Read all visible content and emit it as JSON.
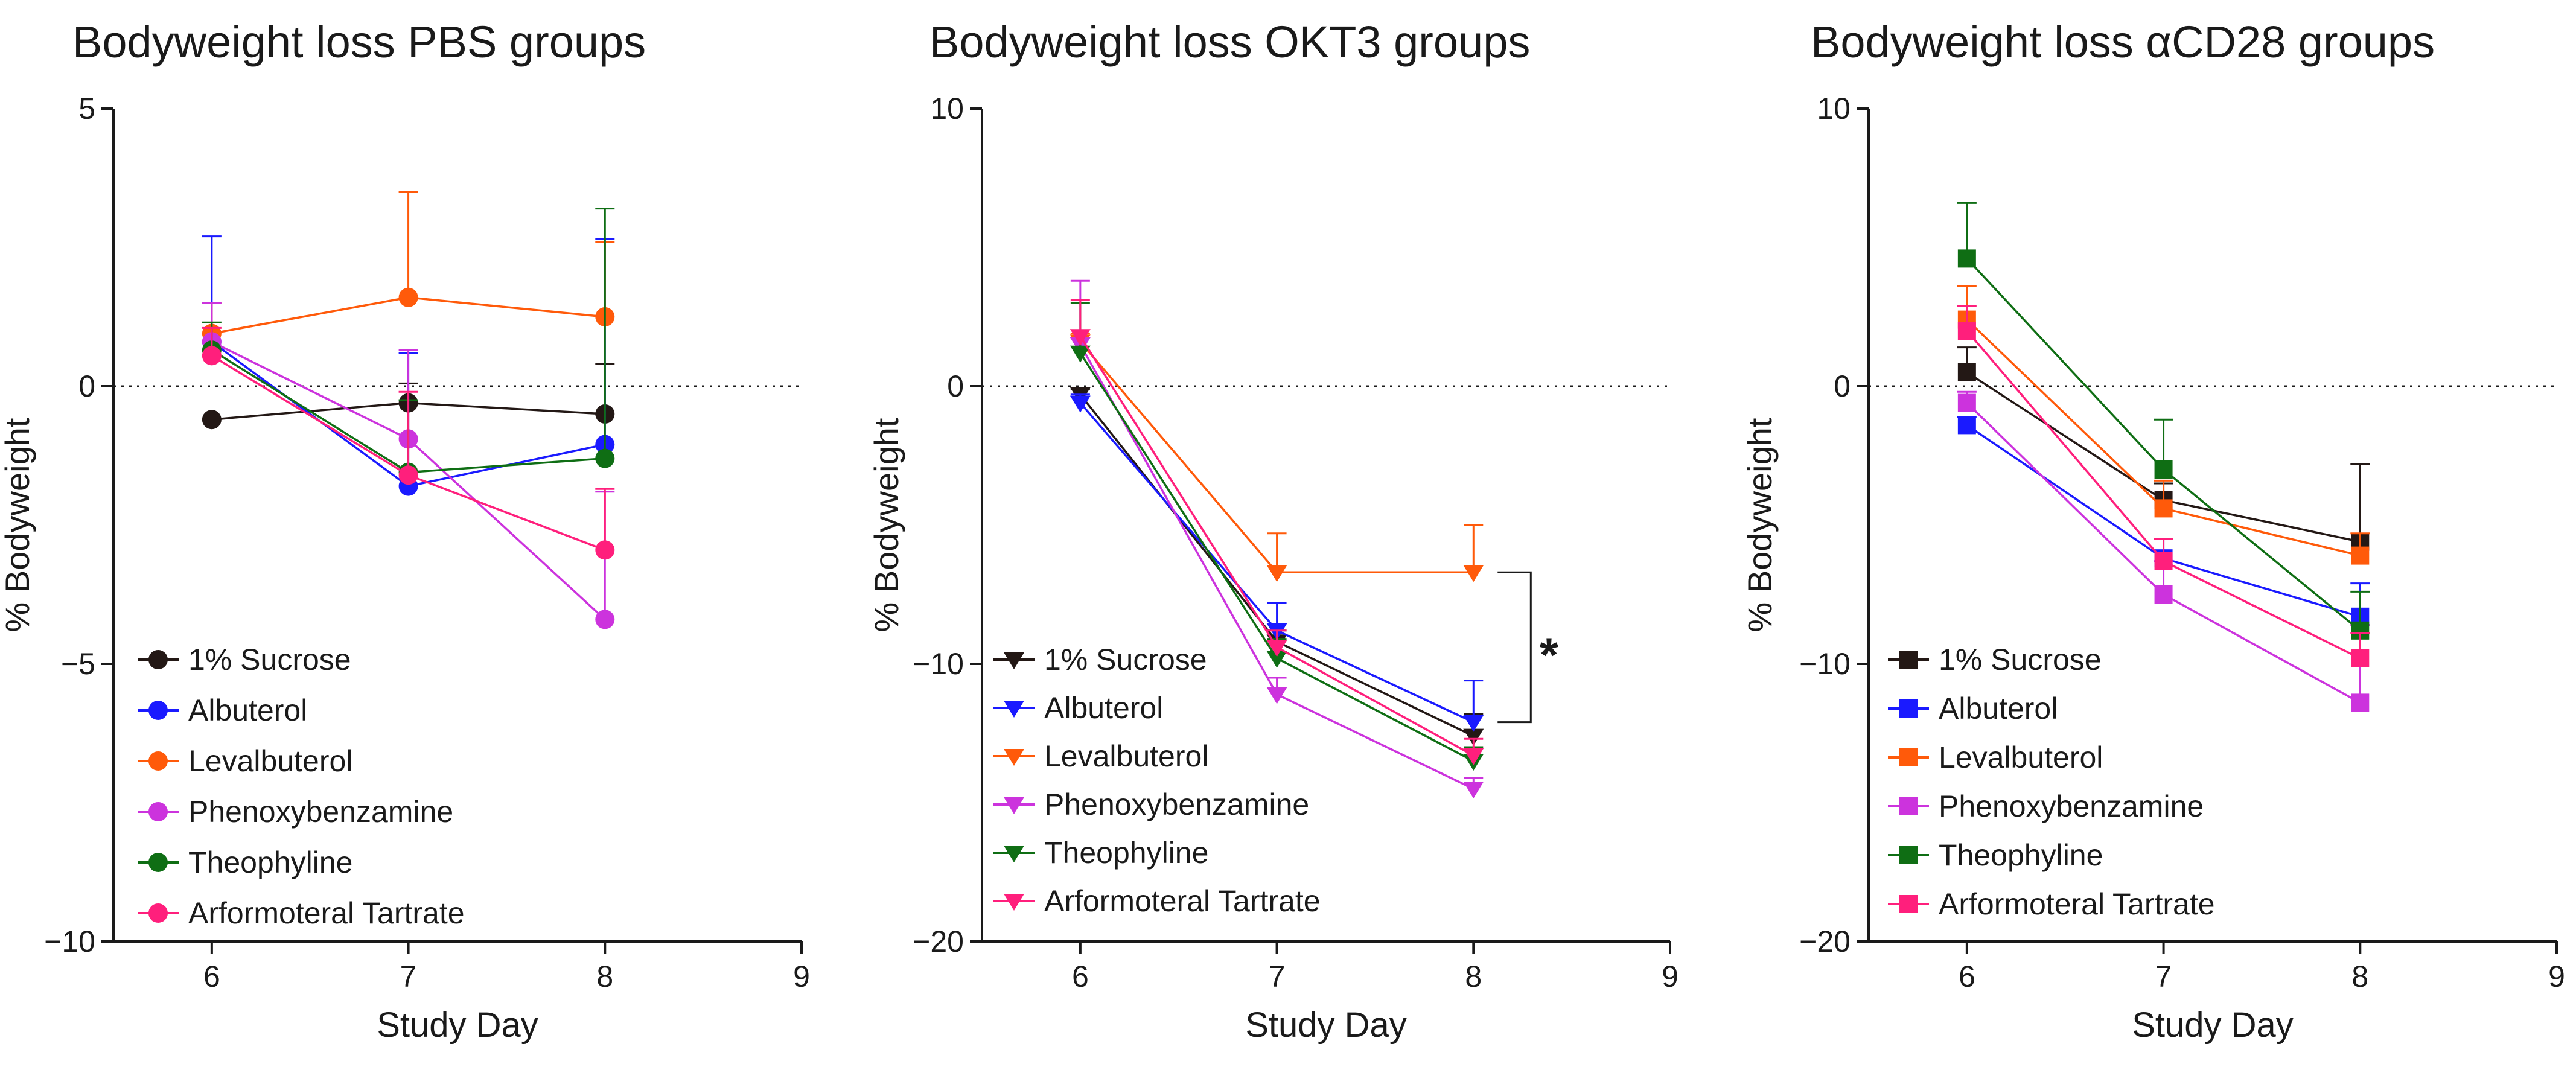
{
  "chart_data": [
    {
      "type": "line",
      "title": "Bodyweight loss PBS groups",
      "xlabel": "Study Day",
      "ylabel": "% Bodyweight",
      "xlim": [
        5.5,
        9
      ],
      "ylim": [
        -10,
        5
      ],
      "xticks": [
        "6",
        "7",
        "8",
        "9"
      ],
      "yticks": [
        "−10",
        "−5",
        "0",
        "5"
      ],
      "ytick_values": [
        -10,
        -5,
        0,
        5
      ],
      "marker": "circle",
      "x": [
        6,
        7,
        8
      ],
      "series": [
        {
          "name": "1% Sucrose",
          "color": "#231815",
          "values": [
            -0.6,
            -0.3,
            -0.5
          ],
          "error": [
            0,
            0.35,
            0.9
          ]
        },
        {
          "name": "Albuterol",
          "color": "#1a1aff",
          "values": [
            0.8,
            -1.8,
            -1.05
          ],
          "error": [
            1.9,
            2.4,
            3.7
          ]
        },
        {
          "name": "Levalbuterol",
          "color": "#ff5a0a",
          "values": [
            0.95,
            1.6,
            1.25
          ],
          "error": [
            0.55,
            1.9,
            1.35
          ]
        },
        {
          "name": "Phenoxybenzamine",
          "color": "#cc33dd",
          "values": [
            0.8,
            -0.95,
            -4.2
          ],
          "error": [
            0.7,
            1.6,
            2.3
          ]
        },
        {
          "name": "Theophyline",
          "color": "#0f6e14",
          "values": [
            0.65,
            -1.55,
            -1.3
          ],
          "error": [
            0.5,
            1.3,
            4.5
          ]
        },
        {
          "name": "Arformoteral Tartrate",
          "color": "#ff1f7c",
          "values": [
            0.55,
            -1.6,
            -2.95
          ],
          "error": [
            0.5,
            1.5,
            1.1
          ]
        }
      ]
    },
    {
      "type": "line",
      "title": "Bodyweight loss OKT3 groups",
      "xlabel": "Study Day",
      "ylabel": "% Bodyweight",
      "xlim": [
        5.5,
        9
      ],
      "ylim": [
        -20,
        10
      ],
      "xticks": [
        "6",
        "7",
        "8",
        "9"
      ],
      "yticks": [
        "−20",
        "−10",
        "0",
        "10"
      ],
      "ytick_values": [
        -20,
        -10,
        0,
        10
      ],
      "marker": "triangle-down",
      "x": [
        6,
        7,
        8
      ],
      "series": [
        {
          "name": "1% Sucrose",
          "color": "#231815",
          "values": [
            -0.3,
            -9.2,
            -12.6
          ],
          "error": [
            0.2,
            0.4,
            0.8
          ]
        },
        {
          "name": "Albuterol",
          "color": "#1a1aff",
          "values": [
            -0.6,
            -8.8,
            -12.1
          ],
          "error": [
            0.3,
            1.0,
            1.5
          ]
        },
        {
          "name": "Levalbuterol",
          "color": "#ff5a0a",
          "values": [
            1.6,
            -6.7,
            -6.7
          ],
          "error": [
            0.3,
            1.4,
            1.7
          ]
        },
        {
          "name": "Phenoxybenzamine",
          "color": "#cc33dd",
          "values": [
            1.5,
            -11.1,
            -14.5
          ],
          "error": [
            2.3,
            0.6,
            0.4
          ]
        },
        {
          "name": "Theophyline",
          "color": "#0f6e14",
          "values": [
            1.2,
            -9.8,
            -13.5
          ],
          "error": [
            1.8,
            0.7,
            0.5
          ]
        },
        {
          "name": "Arformoteral Tartrate",
          "color": "#ff1f7c",
          "values": [
            1.8,
            -9.4,
            -13.3
          ],
          "error": [
            1.3,
            0.6,
            0.6
          ]
        }
      ],
      "annotation": {
        "text": "*",
        "between": [
          "Levalbuterol",
          "Albuterol"
        ],
        "at_day": 8
      }
    },
    {
      "type": "line",
      "title": "Bodyweight loss αCD28 groups",
      "xlabel": "Study Day",
      "ylabel": "% Bodyweight",
      "xlim": [
        5.5,
        9
      ],
      "ylim": [
        -20,
        10
      ],
      "xticks": [
        "6",
        "7",
        "8",
        "9"
      ],
      "yticks": [
        "−20",
        "−10",
        "0",
        "10"
      ],
      "ytick_values": [
        -20,
        -10,
        0,
        10
      ],
      "marker": "square",
      "x": [
        6,
        7,
        8
      ],
      "series": [
        {
          "name": "1% Sucrose",
          "color": "#231815",
          "values": [
            0.5,
            -4.1,
            -5.6
          ],
          "error": [
            0.9,
            0.6,
            2.8
          ]
        },
        {
          "name": "Albuterol",
          "color": "#1a1aff",
          "values": [
            -1.4,
            -6.2,
            -8.3
          ],
          "error": [
            0.3,
            0.7,
            1.2
          ]
        },
        {
          "name": "Levalbuterol",
          "color": "#ff5a0a",
          "values": [
            2.4,
            -4.4,
            -6.1
          ],
          "error": [
            1.2,
            1.0,
            0.8
          ]
        },
        {
          "name": "Phenoxybenzamine",
          "color": "#cc33dd",
          "values": [
            -0.6,
            -7.5,
            -11.4
          ],
          "error": [
            0.4,
            1.2,
            2.8
          ]
        },
        {
          "name": "Theophyline",
          "color": "#0f6e14",
          "values": [
            4.6,
            -3.0,
            -8.8
          ],
          "error": [
            2.0,
            1.8,
            1.4
          ]
        },
        {
          "name": "Arformoteral Tartrate",
          "color": "#ff1f7c",
          "values": [
            2.0,
            -6.3,
            -9.8
          ],
          "error": [
            0.9,
            0.8,
            0.9
          ]
        }
      ]
    }
  ]
}
